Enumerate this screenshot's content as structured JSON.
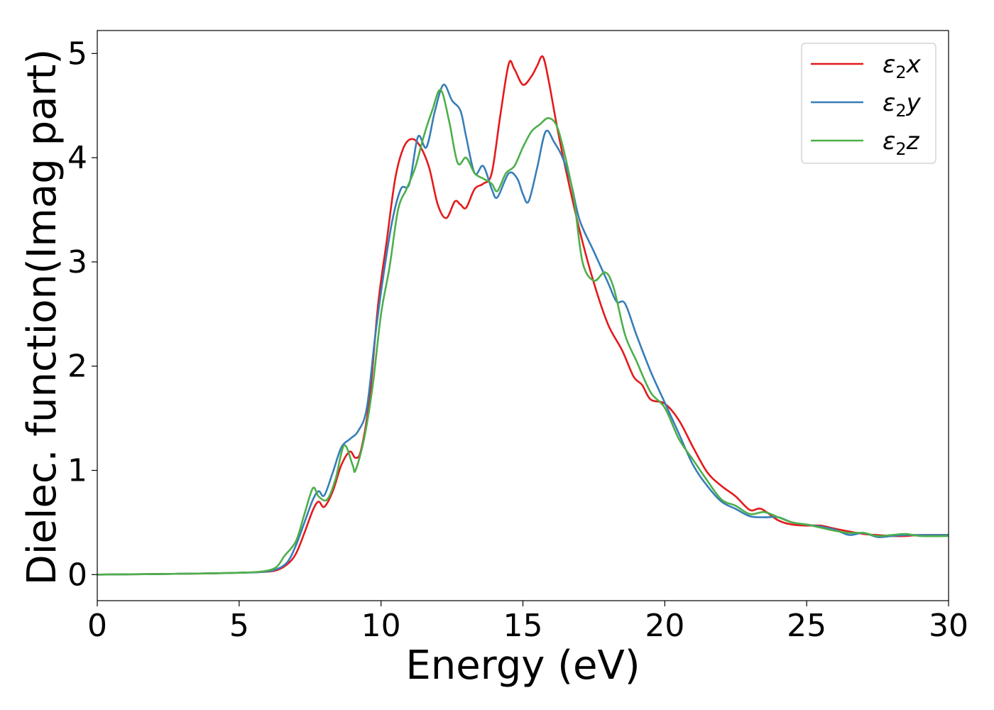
{
  "chart_data": {
    "type": "line",
    "title": "",
    "xlabel": "Energy (eV)",
    "ylabel": "Dielec. function(Imag part)",
    "xlim": [
      0,
      30
    ],
    "ylim": [
      -0.25,
      5.22
    ],
    "xticks": [
      0,
      5,
      10,
      15,
      20,
      25,
      30
    ],
    "xtick_labels": [
      "0",
      "5",
      "10",
      "15",
      "20",
      "25",
      "30"
    ],
    "yticks": [
      0,
      1,
      2,
      3,
      4,
      5
    ],
    "ytick_labels": [
      "0",
      "1",
      "2",
      "3",
      "4",
      "5"
    ],
    "grid": false,
    "legend_position": "top-right",
    "series": [
      {
        "name": "ε2x",
        "legend": {
          "base": "ε",
          "sub": "2",
          "suffix": "x"
        },
        "color": "#e41a1c",
        "points": [
          [
            0,
            0
          ],
          [
            2,
            0.005
          ],
          [
            4,
            0.012
          ],
          [
            5,
            0.018
          ],
          [
            5.8,
            0.025
          ],
          [
            6.3,
            0.04
          ],
          [
            6.7,
            0.1
          ],
          [
            7.0,
            0.2
          ],
          [
            7.3,
            0.4
          ],
          [
            7.6,
            0.62
          ],
          [
            7.8,
            0.7
          ],
          [
            8.0,
            0.65
          ],
          [
            8.3,
            0.8
          ],
          [
            8.6,
            1.05
          ],
          [
            8.9,
            1.18
          ],
          [
            9.1,
            1.12
          ],
          [
            9.3,
            1.2
          ],
          [
            9.6,
            1.7
          ],
          [
            9.9,
            2.6
          ],
          [
            10.2,
            3.2
          ],
          [
            10.5,
            3.8
          ],
          [
            10.8,
            4.1
          ],
          [
            11.1,
            4.18
          ],
          [
            11.4,
            4.1
          ],
          [
            11.7,
            3.9
          ],
          [
            12.0,
            3.55
          ],
          [
            12.3,
            3.42
          ],
          [
            12.6,
            3.58
          ],
          [
            12.8,
            3.55
          ],
          [
            13.0,
            3.52
          ],
          [
            13.3,
            3.7
          ],
          [
            13.6,
            3.75
          ],
          [
            13.9,
            3.85
          ],
          [
            14.2,
            4.4
          ],
          [
            14.5,
            4.9
          ],
          [
            14.7,
            4.85
          ],
          [
            15.0,
            4.7
          ],
          [
            15.3,
            4.78
          ],
          [
            15.5,
            4.88
          ],
          [
            15.7,
            4.97
          ],
          [
            15.9,
            4.75
          ],
          [
            16.2,
            4.3
          ],
          [
            16.5,
            3.9
          ],
          [
            17.0,
            3.3
          ],
          [
            17.5,
            2.8
          ],
          [
            18.0,
            2.4
          ],
          [
            18.5,
            2.15
          ],
          [
            18.9,
            1.9
          ],
          [
            19.2,
            1.82
          ],
          [
            19.5,
            1.68
          ],
          [
            20.0,
            1.64
          ],
          [
            20.5,
            1.48
          ],
          [
            21.0,
            1.22
          ],
          [
            21.5,
            0.98
          ],
          [
            22.0,
            0.85
          ],
          [
            22.5,
            0.75
          ],
          [
            23.0,
            0.62
          ],
          [
            23.4,
            0.63
          ],
          [
            24.0,
            0.52
          ],
          [
            24.5,
            0.48
          ],
          [
            25.0,
            0.47
          ],
          [
            25.5,
            0.47
          ],
          [
            26.0,
            0.44
          ],
          [
            27.0,
            0.39
          ],
          [
            27.5,
            0.38
          ],
          [
            28.0,
            0.37
          ],
          [
            28.5,
            0.37
          ],
          [
            29.0,
            0.38
          ],
          [
            30.0,
            0.38
          ]
        ]
      },
      {
        "name": "ε2y",
        "legend": {
          "base": "ε",
          "sub": "2",
          "suffix": "y"
        },
        "color": "#377eb8",
        "points": [
          [
            0,
            0
          ],
          [
            2,
            0.005
          ],
          [
            4,
            0.012
          ],
          [
            5,
            0.018
          ],
          [
            5.8,
            0.025
          ],
          [
            6.3,
            0.05
          ],
          [
            6.7,
            0.12
          ],
          [
            7.0,
            0.28
          ],
          [
            7.3,
            0.5
          ],
          [
            7.6,
            0.72
          ],
          [
            7.8,
            0.8
          ],
          [
            8.0,
            0.76
          ],
          [
            8.3,
            0.98
          ],
          [
            8.6,
            1.22
          ],
          [
            8.9,
            1.3
          ],
          [
            9.2,
            1.38
          ],
          [
            9.5,
            1.6
          ],
          [
            9.8,
            2.3
          ],
          [
            10.1,
            2.9
          ],
          [
            10.4,
            3.4
          ],
          [
            10.7,
            3.7
          ],
          [
            11.0,
            3.75
          ],
          [
            11.3,
            4.2
          ],
          [
            11.6,
            4.1
          ],
          [
            11.9,
            4.45
          ],
          [
            12.2,
            4.7
          ],
          [
            12.5,
            4.55
          ],
          [
            12.8,
            4.45
          ],
          [
            13.0,
            4.2
          ],
          [
            13.3,
            3.85
          ],
          [
            13.6,
            3.92
          ],
          [
            13.9,
            3.7
          ],
          [
            14.1,
            3.62
          ],
          [
            14.5,
            3.85
          ],
          [
            14.8,
            3.8
          ],
          [
            15.0,
            3.65
          ],
          [
            15.2,
            3.58
          ],
          [
            15.5,
            3.9
          ],
          [
            15.8,
            4.25
          ],
          [
            16.1,
            4.15
          ],
          [
            16.4,
            4.0
          ],
          [
            16.7,
            3.75
          ],
          [
            17.0,
            3.4
          ],
          [
            17.5,
            3.1
          ],
          [
            18.0,
            2.8
          ],
          [
            18.3,
            2.62
          ],
          [
            18.6,
            2.6
          ],
          [
            19.0,
            2.3
          ],
          [
            19.5,
            1.95
          ],
          [
            20.0,
            1.65
          ],
          [
            20.5,
            1.35
          ],
          [
            21.0,
            1.05
          ],
          [
            21.5,
            0.85
          ],
          [
            22.0,
            0.7
          ],
          [
            22.5,
            0.63
          ],
          [
            23.0,
            0.56
          ],
          [
            23.5,
            0.55
          ],
          [
            24.0,
            0.55
          ],
          [
            24.5,
            0.5
          ],
          [
            25.0,
            0.48
          ],
          [
            25.5,
            0.46
          ],
          [
            26.0,
            0.43
          ],
          [
            26.5,
            0.38
          ],
          [
            27.0,
            0.4
          ],
          [
            27.5,
            0.36
          ],
          [
            28.0,
            0.37
          ],
          [
            28.5,
            0.38
          ],
          [
            29.0,
            0.38
          ],
          [
            30.0,
            0.38
          ]
        ]
      },
      {
        "name": "ε2z",
        "legend": {
          "base": "ε",
          "sub": "2",
          "suffix": "z"
        },
        "color": "#4daf4a",
        "points": [
          [
            0,
            0
          ],
          [
            2,
            0.005
          ],
          [
            4,
            0.012
          ],
          [
            5,
            0.018
          ],
          [
            5.8,
            0.03
          ],
          [
            6.3,
            0.07
          ],
          [
            6.6,
            0.18
          ],
          [
            7.0,
            0.32
          ],
          [
            7.3,
            0.58
          ],
          [
            7.6,
            0.83
          ],
          [
            7.8,
            0.75
          ],
          [
            8.1,
            0.72
          ],
          [
            8.4,
            0.92
          ],
          [
            8.7,
            1.24
          ],
          [
            9.0,
            1.05
          ],
          [
            9.1,
            1.0
          ],
          [
            9.4,
            1.3
          ],
          [
            9.7,
            1.8
          ],
          [
            10.0,
            2.5
          ],
          [
            10.3,
            2.95
          ],
          [
            10.6,
            3.5
          ],
          [
            10.9,
            3.7
          ],
          [
            11.2,
            3.9
          ],
          [
            11.5,
            4.2
          ],
          [
            11.8,
            4.45
          ],
          [
            12.1,
            4.65
          ],
          [
            12.4,
            4.35
          ],
          [
            12.7,
            3.95
          ],
          [
            13.0,
            4.0
          ],
          [
            13.3,
            3.85
          ],
          [
            13.6,
            3.8
          ],
          [
            13.9,
            3.75
          ],
          [
            14.1,
            3.68
          ],
          [
            14.4,
            3.85
          ],
          [
            14.7,
            3.92
          ],
          [
            15.0,
            4.1
          ],
          [
            15.3,
            4.25
          ],
          [
            15.6,
            4.32
          ],
          [
            15.9,
            4.38
          ],
          [
            16.2,
            4.3
          ],
          [
            16.5,
            4.0
          ],
          [
            16.8,
            3.6
          ],
          [
            17.1,
            3.0
          ],
          [
            17.5,
            2.82
          ],
          [
            17.9,
            2.9
          ],
          [
            18.2,
            2.75
          ],
          [
            18.6,
            2.3
          ],
          [
            19.0,
            2.05
          ],
          [
            19.5,
            1.75
          ],
          [
            20.0,
            1.6
          ],
          [
            20.5,
            1.3
          ],
          [
            21.0,
            1.1
          ],
          [
            21.5,
            0.9
          ],
          [
            22.0,
            0.72
          ],
          [
            22.5,
            0.66
          ],
          [
            23.0,
            0.58
          ],
          [
            23.5,
            0.6
          ],
          [
            24.0,
            0.55
          ],
          [
            24.5,
            0.5
          ],
          [
            25.0,
            0.48
          ],
          [
            25.5,
            0.45
          ],
          [
            26.0,
            0.42
          ],
          [
            26.5,
            0.4
          ],
          [
            27.0,
            0.4
          ],
          [
            27.5,
            0.37
          ],
          [
            28.0,
            0.38
          ],
          [
            28.5,
            0.39
          ],
          [
            29.0,
            0.37
          ],
          [
            30.0,
            0.37
          ]
        ]
      }
    ]
  }
}
